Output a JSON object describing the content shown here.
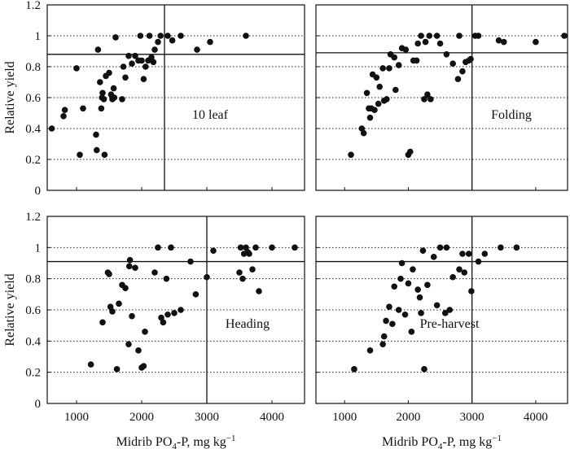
{
  "chart_data": [
    {
      "type": "scatter",
      "panel_label": "10 leaf",
      "ylabel": "Relative yield",
      "xlabel": "",
      "xlim": [
        550,
        4500
      ],
      "ylim": [
        0,
        1.2
      ],
      "yticks": [
        "0",
        "0.2",
        "0.4",
        "0.6",
        "0.8",
        "1",
        "1.2"
      ],
      "xticks": [],
      "ref_lines": [
        1.0,
        0.8,
        0.6,
        0.4,
        0.2
      ],
      "critical_x": 2350,
      "critical_y": 0.88,
      "points": [
        [
          620,
          0.4
        ],
        [
          800,
          0.48
        ],
        [
          820,
          0.52
        ],
        [
          1000,
          0.79
        ],
        [
          1050,
          0.23
        ],
        [
          1100,
          0.53
        ],
        [
          1300,
          0.36
        ],
        [
          1310,
          0.26
        ],
        [
          1330,
          0.91
        ],
        [
          1360,
          0.7
        ],
        [
          1380,
          0.53
        ],
        [
          1390,
          0.6
        ],
        [
          1400,
          0.63
        ],
        [
          1420,
          0.59
        ],
        [
          1430,
          0.23
        ],
        [
          1450,
          0.74
        ],
        [
          1500,
          0.76
        ],
        [
          1530,
          0.62
        ],
        [
          1550,
          0.59
        ],
        [
          1570,
          0.66
        ],
        [
          1580,
          0.6
        ],
        [
          1600,
          0.99
        ],
        [
          1700,
          0.59
        ],
        [
          1720,
          0.8
        ],
        [
          1750,
          0.73
        ],
        [
          1800,
          0.87
        ],
        [
          1850,
          0.82
        ],
        [
          1900,
          0.87
        ],
        [
          1950,
          0.84
        ],
        [
          1980,
          1.0
        ],
        [
          2000,
          0.84
        ],
        [
          2030,
          0.72
        ],
        [
          2060,
          0.8
        ],
        [
          2100,
          0.84
        ],
        [
          2120,
          1.0
        ],
        [
          2150,
          0.86
        ],
        [
          2180,
          0.83
        ],
        [
          2200,
          0.91
        ],
        [
          2250,
          0.96
        ],
        [
          2290,
          1.0
        ],
        [
          2400,
          1.0
        ],
        [
          2470,
          0.97
        ],
        [
          2600,
          1.0
        ],
        [
          2850,
          0.91
        ],
        [
          3050,
          0.96
        ],
        [
          3600,
          1.0
        ]
      ]
    },
    {
      "type": "scatter",
      "panel_label": "Folding",
      "ylabel": "",
      "xlabel": "",
      "xlim": [
        550,
        4500
      ],
      "ylim": [
        0,
        1.2
      ],
      "yticks": [],
      "xticks": [],
      "ref_lines": [
        1.0,
        0.8,
        0.6,
        0.4,
        0.2
      ],
      "critical_x": 3000,
      "critical_y": 0.89,
      "points": [
        [
          1100,
          0.23
        ],
        [
          1270,
          0.4
        ],
        [
          1300,
          0.37
        ],
        [
          1350,
          0.63
        ],
        [
          1380,
          0.53
        ],
        [
          1400,
          0.47
        ],
        [
          1420,
          0.53
        ],
        [
          1440,
          0.75
        ],
        [
          1470,
          0.52
        ],
        [
          1500,
          0.73
        ],
        [
          1530,
          0.56
        ],
        [
          1550,
          0.67
        ],
        [
          1600,
          0.79
        ],
        [
          1620,
          0.58
        ],
        [
          1660,
          0.59
        ],
        [
          1700,
          0.79
        ],
        [
          1720,
          0.88
        ],
        [
          1780,
          0.86
        ],
        [
          1800,
          0.65
        ],
        [
          1850,
          0.81
        ],
        [
          1900,
          0.92
        ],
        [
          1960,
          0.91
        ],
        [
          2000,
          0.23
        ],
        [
          2030,
          0.25
        ],
        [
          2080,
          0.84
        ],
        [
          2130,
          0.84
        ],
        [
          2150,
          0.95
        ],
        [
          2200,
          1.0
        ],
        [
          2250,
          0.59
        ],
        [
          2270,
          0.96
        ],
        [
          2300,
          0.62
        ],
        [
          2330,
          1.0
        ],
        [
          2350,
          0.59
        ],
        [
          2450,
          1.0
        ],
        [
          2500,
          0.95
        ],
        [
          2600,
          0.88
        ],
        [
          2700,
          0.82
        ],
        [
          2780,
          0.72
        ],
        [
          2800,
          1.0
        ],
        [
          2850,
          0.77
        ],
        [
          2900,
          0.83
        ],
        [
          2950,
          0.84
        ],
        [
          2980,
          0.85
        ],
        [
          3050,
          1.0
        ],
        [
          3100,
          1.0
        ],
        [
          3420,
          0.97
        ],
        [
          3500,
          0.96
        ],
        [
          4000,
          0.96
        ],
        [
          4450,
          1.0
        ]
      ]
    },
    {
      "type": "scatter",
      "panel_label": "Heading",
      "ylabel": "Relative yield",
      "xlabel": "Midrib PO4-P, mg kg−1",
      "xlim": [
        550,
        4500
      ],
      "ylim": [
        0,
        1.2
      ],
      "yticks": [
        "0",
        "0.2",
        "0.4",
        "0.6",
        "0.8",
        "1",
        "1.2"
      ],
      "xticks": [
        "1000",
        "2000",
        "3000",
        "4000"
      ],
      "ref_lines": [
        1.0,
        0.8,
        0.6,
        0.4,
        0.2
      ],
      "critical_x": 3000,
      "critical_y": 0.91,
      "points": [
        [
          1220,
          0.25
        ],
        [
          1400,
          0.52
        ],
        [
          1480,
          0.84
        ],
        [
          1500,
          0.83
        ],
        [
          1520,
          0.62
        ],
        [
          1550,
          0.59
        ],
        [
          1620,
          0.22
        ],
        [
          1650,
          0.64
        ],
        [
          1700,
          0.76
        ],
        [
          1750,
          0.74
        ],
        [
          1800,
          0.38
        ],
        [
          1810,
          0.88
        ],
        [
          1820,
          0.92
        ],
        [
          1850,
          0.56
        ],
        [
          1900,
          0.87
        ],
        [
          1950,
          0.34
        ],
        [
          2000,
          0.23
        ],
        [
          2030,
          0.24
        ],
        [
          2050,
          0.46
        ],
        [
          2200,
          0.84
        ],
        [
          2250,
          1.0
        ],
        [
          2300,
          0.55
        ],
        [
          2330,
          0.52
        ],
        [
          2380,
          0.8
        ],
        [
          2400,
          0.57
        ],
        [
          2450,
          1.0
        ],
        [
          2500,
          0.58
        ],
        [
          2600,
          0.6
        ],
        [
          2750,
          0.91
        ],
        [
          2830,
          0.7
        ],
        [
          3000,
          0.81
        ],
        [
          3100,
          0.98
        ],
        [
          3500,
          0.84
        ],
        [
          3520,
          1.0
        ],
        [
          3550,
          0.8
        ],
        [
          3570,
          0.96
        ],
        [
          3600,
          1.0
        ],
        [
          3630,
          0.97
        ],
        [
          3650,
          0.96
        ],
        [
          3700,
          0.86
        ],
        [
          3750,
          1.0
        ],
        [
          3800,
          0.72
        ],
        [
          4000,
          1.0
        ],
        [
          4350,
          1.0
        ]
      ]
    },
    {
      "type": "scatter",
      "panel_label": "Pre-harvest",
      "ylabel": "",
      "xlabel": "Midrib PO4-P, mg kg−1",
      "xlim": [
        550,
        4500
      ],
      "ylim": [
        0,
        1.2
      ],
      "yticks": [],
      "xticks": [
        "1000",
        "2000",
        "3000",
        "4000"
      ],
      "ref_lines": [
        1.0,
        0.8,
        0.6,
        0.4,
        0.2
      ],
      "critical_x": 3000,
      "critical_y": 0.91,
      "points": [
        [
          1150,
          0.22
        ],
        [
          1400,
          0.34
        ],
        [
          1600,
          0.38
        ],
        [
          1620,
          0.43
        ],
        [
          1650,
          0.53
        ],
        [
          1700,
          0.62
        ],
        [
          1750,
          0.51
        ],
        [
          1780,
          0.75
        ],
        [
          1850,
          0.6
        ],
        [
          1880,
          0.8
        ],
        [
          1900,
          0.9
        ],
        [
          1950,
          0.57
        ],
        [
          2000,
          0.77
        ],
        [
          2050,
          0.46
        ],
        [
          2070,
          0.86
        ],
        [
          2150,
          0.73
        ],
        [
          2180,
          0.68
        ],
        [
          2200,
          0.58
        ],
        [
          2230,
          0.98
        ],
        [
          2250,
          0.22
        ],
        [
          2300,
          0.76
        ],
        [
          2400,
          0.94
        ],
        [
          2450,
          0.63
        ],
        [
          2500,
          1.0
        ],
        [
          2580,
          0.58
        ],
        [
          2600,
          1.0
        ],
        [
          2650,
          0.6
        ],
        [
          2700,
          0.81
        ],
        [
          2800,
          0.86
        ],
        [
          2850,
          0.96
        ],
        [
          2880,
          0.84
        ],
        [
          2950,
          0.96
        ],
        [
          2990,
          0.72
        ],
        [
          3100,
          0.91
        ],
        [
          3200,
          0.96
        ],
        [
          3450,
          1.0
        ],
        [
          3700,
          1.0
        ]
      ]
    }
  ]
}
